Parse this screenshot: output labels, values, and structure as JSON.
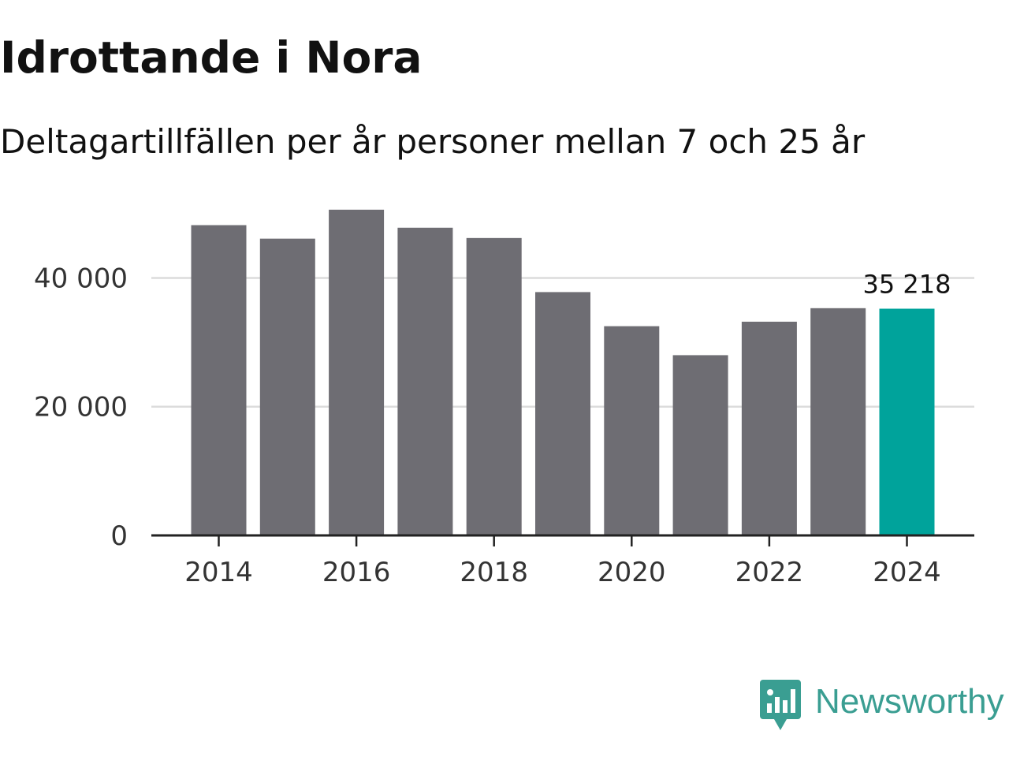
{
  "header": {
    "title": "Idrottande i Nora",
    "subtitle": "Deltagartillfällen per år personer mellan 7 och 25 år"
  },
  "branding": {
    "name": "Newsworthy",
    "icon": "newsworthy-logo-icon",
    "color": "#3a9e92"
  },
  "chart_data": {
    "type": "bar",
    "title": "Idrottande i Nora",
    "subtitle": "Deltagartillfällen per år personer mellan 7 och 25 år",
    "xlabel": "",
    "ylabel": "",
    "categories": [
      "2014",
      "2015",
      "2016",
      "2017",
      "2018",
      "2019",
      "2020",
      "2021",
      "2022",
      "2023",
      "2024"
    ],
    "values": [
      48200,
      46100,
      50600,
      47800,
      46200,
      37800,
      32500,
      28000,
      33200,
      35300,
      35218
    ],
    "x_tick_labels": [
      "2014",
      "2016",
      "2018",
      "2020",
      "2022",
      "2024"
    ],
    "y_ticks": [
      0,
      20000,
      40000
    ],
    "y_tick_labels": [
      "0",
      "20 000",
      "40 000"
    ],
    "ylim": [
      0,
      55000
    ],
    "grid": true,
    "bar_color": "#6e6d73",
    "highlight_color": "#00a39b",
    "highlight_index": 10,
    "annotations": [
      {
        "category": "2024",
        "text": "35 218"
      }
    ]
  }
}
